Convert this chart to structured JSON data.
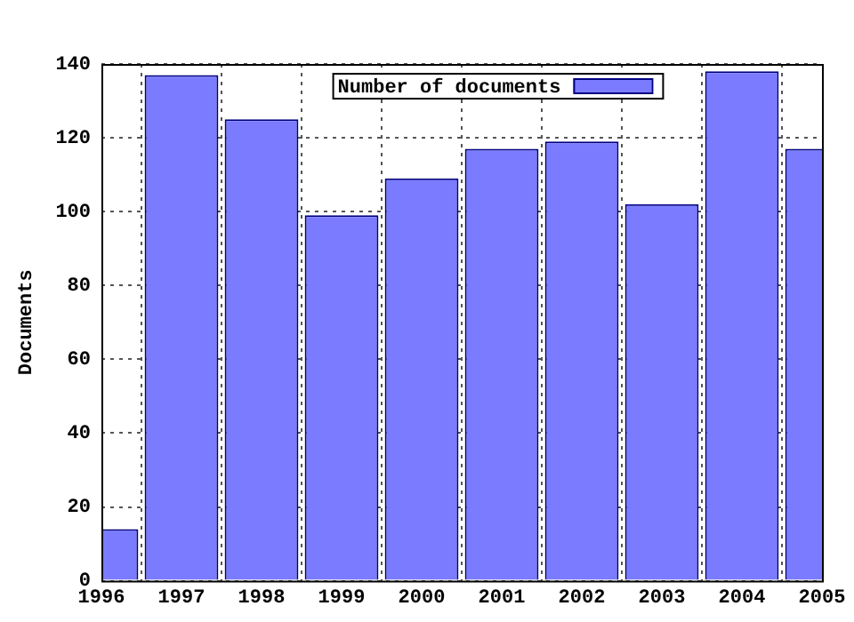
{
  "chart_data": {
    "type": "bar",
    "ylabel": "Documents",
    "x": [
      1996,
      1997,
      1998,
      1999,
      2000,
      2001,
      2002,
      2003,
      2004,
      2005
    ],
    "series": [
      {
        "name": "Number of documents",
        "color": "#7b7bff",
        "values": [
          14,
          137,
          125,
          99,
          109,
          117,
          119,
          102,
          138,
          117
        ]
      }
    ],
    "xlim": [
      1996,
      2005
    ],
    "xticks": [
      1996,
      1997,
      1998,
      1999,
      2000,
      2001,
      2002,
      2003,
      2004,
      2005
    ],
    "ylim": [
      0,
      140
    ],
    "yticks": [
      0,
      20,
      40,
      60,
      80,
      100,
      120,
      140
    ],
    "grid": true,
    "legend": "top"
  }
}
